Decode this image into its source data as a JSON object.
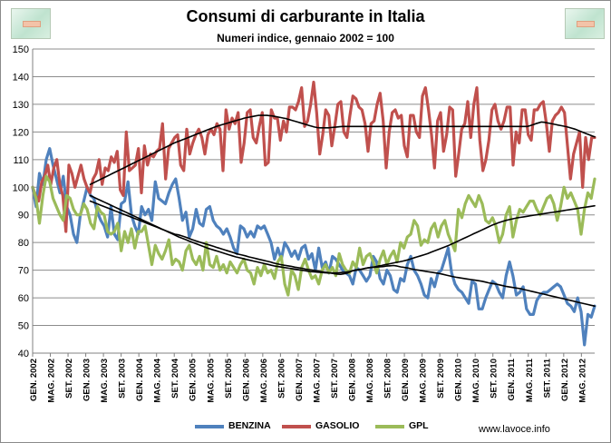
{
  "chart_data": {
    "type": "line",
    "title": "Consumi di carburante in Italia",
    "subtitle": "Numeri indice, gennaio 2002 = 100",
    "ylim": [
      40,
      150
    ],
    "y_ticks": [
      40,
      50,
      60,
      70,
      80,
      90,
      100,
      110,
      120,
      130,
      140,
      150
    ],
    "x_tick_labels": [
      "GEN. 2002",
      "MAG. 2002",
      "SET. 2002",
      "GEN. 2003",
      "MAG. 2003",
      "SET. 2003",
      "GEN. 2004",
      "MAG. 2004",
      "SET. 2004",
      "GEN. 2005",
      "MAG. 2005",
      "SET. 2005",
      "GEN. 2006",
      "MAG. 2006",
      "SET. 2006",
      "GEN. 2007",
      "MAG. 2007",
      "SET. 2007",
      "GEN. 2008",
      "MAG. 2008",
      "SET. 2008",
      "GEN. 2009",
      "MAG. 2009",
      "SET. 2009",
      "GEN. 2010",
      "MAG. 2010",
      "SET. 2010",
      "GEN. 2011",
      "MAG. 2011",
      "SET. 2011",
      "GEN. 2012",
      "MAG. 2012"
    ],
    "grid": true,
    "legend_position": "bottom",
    "series": [
      {
        "name": "BENZINA",
        "color": "#4f81bd",
        "values": [
          100,
          93,
          105,
          101,
          110,
          114,
          108,
          103,
          98,
          104,
          93,
          90,
          83,
          80,
          90,
          95,
          100,
          97,
          96,
          91,
          88,
          86,
          82,
          93,
          83,
          81,
          94,
          95,
          102,
          90,
          86,
          83,
          93,
          90,
          92,
          88,
          102,
          96,
          95,
          94,
          98,
          101,
          103,
          96,
          88,
          91,
          82,
          85,
          92,
          87,
          86,
          92,
          93,
          88,
          86,
          85,
          83,
          85,
          82,
          78,
          76,
          86,
          85,
          82,
          84,
          82,
          86,
          85,
          86,
          83,
          80,
          74,
          78,
          74,
          80,
          78,
          75,
          77,
          74,
          78,
          79,
          74,
          76,
          70,
          78,
          71,
          73,
          69,
          75,
          74,
          72,
          70,
          69,
          68,
          65,
          71,
          70,
          68,
          66,
          68,
          75,
          73,
          67,
          65,
          70,
          68,
          63,
          62,
          67,
          66,
          72,
          75,
          70,
          68,
          65,
          61,
          60,
          67,
          64,
          69,
          70,
          74,
          78,
          69,
          65,
          63,
          62,
          60,
          58,
          66,
          65,
          56,
          56,
          60,
          63,
          66,
          65,
          62,
          60,
          68,
          73,
          68,
          61,
          62,
          64,
          56,
          54,
          54,
          59,
          61,
          62,
          62,
          63,
          64,
          65,
          64,
          61,
          58,
          57,
          55,
          60,
          55,
          43,
          54,
          53,
          57
        ]
      },
      {
        "name": "GASOLIO",
        "color": "#c0504d",
        "values": [
          100,
          97,
          95,
          102,
          104,
          108,
          101,
          107,
          110,
          101,
          97,
          84,
          108,
          105,
          100,
          104,
          108,
          103,
          100,
          98,
          103,
          105,
          110,
          101,
          107,
          106,
          111,
          109,
          113,
          99,
          97,
          120,
          106,
          107,
          108,
          114,
          98,
          115,
          108,
          112,
          111,
          113,
          114,
          123,
          103,
          114,
          116,
          118,
          119,
          108,
          106,
          121,
          112,
          116,
          119,
          121,
          118,
          112,
          119,
          121,
          119,
          123,
          121,
          106,
          128,
          121,
          125,
          123,
          127,
          109,
          116,
          127,
          128,
          118,
          116,
          122,
          127,
          108,
          109,
          128,
          125,
          125,
          117,
          124,
          120,
          129,
          129,
          128,
          131,
          136,
          122,
          124,
          130,
          138,
          127,
          112,
          119,
          128,
          126,
          115,
          122,
          130,
          131,
          120,
          118,
          126,
          133,
          132,
          129,
          128,
          123,
          113,
          123,
          124,
          130,
          134,
          124,
          107,
          120,
          127,
          128,
          125,
          126,
          115,
          111,
          126,
          126,
          120,
          118,
          133,
          136,
          128,
          119,
          107,
          124,
          127,
          113,
          119,
          129,
          128,
          104,
          112,
          121,
          123,
          131,
          118,
          130,
          136,
          117,
          106,
          110,
          117,
          128,
          130,
          124,
          121,
          124,
          129,
          129,
          108,
          120,
          116,
          128,
          128,
          119,
          117,
          128,
          128,
          130,
          131,
          123,
          113,
          124,
          126,
          127,
          129,
          127,
          115,
          103,
          112,
          116,
          120,
          100,
          118,
          110,
          118,
          118
        ]
      },
      {
        "name": "GPL",
        "color": "#9bbb59",
        "values": [
          100,
          96,
          87,
          97,
          104,
          102,
          96,
          93,
          90,
          88,
          97,
          96,
          92,
          90,
          90,
          94,
          92,
          87,
          85,
          93,
          91,
          90,
          84,
          83,
          84,
          87,
          77,
          84,
          80,
          85,
          78,
          84,
          84,
          86,
          79,
          72,
          79,
          76,
          74,
          77,
          81,
          72,
          74,
          73,
          70,
          77,
          79,
          74,
          72,
          75,
          70,
          80,
          72,
          71,
          75,
          70,
          72,
          69,
          73,
          71,
          69,
          72,
          74,
          70,
          69,
          65,
          71,
          68,
          72,
          69,
          70,
          67,
          73,
          75,
          65,
          61,
          70,
          68,
          63,
          71,
          74,
          70,
          67,
          68,
          65,
          70,
          72,
          69,
          71,
          68,
          76,
          72,
          70,
          69,
          73,
          71,
          78,
          72,
          75,
          76,
          73,
          69,
          74,
          77,
          72,
          75,
          77,
          73,
          80,
          78,
          82,
          83,
          88,
          86,
          79,
          81,
          80,
          85,
          87,
          82,
          86,
          88,
          83,
          80,
          77,
          92,
          89,
          94,
          97,
          95,
          93,
          97,
          94,
          88,
          87,
          89,
          86,
          80,
          83,
          90,
          93,
          82,
          88,
          92,
          91,
          93,
          95,
          95,
          92,
          90,
          93,
          96,
          97,
          94,
          88,
          93,
          100,
          96,
          98,
          95,
          92,
          83,
          92,
          98,
          96,
          103
        ]
      },
      {
        "name": "trend BENZINA",
        "color": "#000000",
        "start_index": 13,
        "values": [
          95,
          94.5,
          94,
          93.5,
          93,
          92.5,
          92,
          91.5,
          91,
          90.5,
          90,
          89.5,
          89,
          88.5,
          88,
          87.5,
          87,
          86.5,
          86,
          85.5,
          85,
          84.5,
          84,
          83.5,
          83,
          82.8,
          82.4,
          82,
          81.5,
          81,
          80.6,
          80.2,
          79.8,
          79.4,
          79,
          78.6,
          78.2,
          77.8,
          77.4,
          77,
          76.6,
          76.2,
          75.8,
          75.5,
          75.2,
          74.8,
          74.5,
          74.2,
          73.9,
          73.6,
          73.3,
          73,
          72.6,
          72.3,
          72,
          71.8,
          71.6,
          71.4,
          71.1,
          70.9,
          70.7,
          70.4,
          70.2,
          70,
          69.8,
          69.6,
          69.4,
          69.2,
          69,
          68.8,
          68.6,
          68.5,
          68.7,
          69,
          69.6,
          70,
          70.2,
          70.4,
          70.7,
          70.9,
          71,
          71.1,
          71.2,
          71.3,
          71.5,
          71.6,
          71.7,
          71.5,
          71.2,
          71,
          70.8,
          70.5,
          70.2,
          70,
          69.8,
          69.6,
          69.4,
          69.2,
          69,
          68.8,
          68.5,
          68.2,
          67.9,
          67.6,
          67.4,
          67.2,
          67,
          66.8,
          66.6,
          66.4,
          66.2,
          66,
          65.7,
          65.4,
          65.2,
          65,
          64.7,
          64.4,
          64.1,
          63.9,
          63.7,
          63.5,
          63.3,
          63,
          62.7,
          62.4,
          62.1,
          61.8,
          61.5,
          61.2,
          60.9,
          60.6,
          60.3,
          60,
          59.7,
          59.4,
          59.1,
          58.8,
          58.5,
          58.2,
          57.9,
          57.6,
          57.3,
          57
        ]
      },
      {
        "name": "trend GASOLIO",
        "color": "#000000",
        "start_index": 13,
        "values": [
          101,
          101.5,
          102,
          102.5,
          103,
          103.5,
          104,
          104.5,
          105,
          105.5,
          106,
          106.5,
          107,
          107.5,
          108,
          108.5,
          109,
          109.5,
          110,
          110.5,
          111,
          111.5,
          112,
          112.5,
          113,
          113.5,
          114,
          114.5,
          115,
          115.5,
          116,
          116.4,
          116.8,
          117.2,
          117.6,
          118,
          118.4,
          118.8,
          119.2,
          119.6,
          120,
          120.4,
          120.8,
          121.2,
          121.6,
          122,
          122.3,
          122.6,
          122.9,
          123.2,
          123.5,
          123.8,
          124.1,
          124.4,
          124.7,
          125,
          125.2,
          125.4,
          125.6,
          125.8,
          126,
          126,
          126,
          126,
          125.9,
          125.8,
          125.6,
          125.4,
          125.2,
          125,
          124.8,
          124.5,
          124.2,
          123.9,
          123.6,
          123.3,
          123,
          122.7,
          122.4,
          122.1,
          121.8,
          121.6,
          121.5,
          121.5,
          121.5,
          121.5,
          121.6,
          121.7,
          121.8,
          121.9,
          122,
          122,
          122,
          122,
          122,
          122,
          122,
          122,
          122,
          122,
          122,
          122,
          122,
          122,
          122,
          122,
          122,
          122,
          122,
          122,
          122,
          122,
          122,
          122,
          122,
          122,
          122,
          122,
          122,
          122,
          122,
          122,
          122,
          122,
          122,
          122,
          122,
          122,
          122,
          122,
          122,
          122,
          122,
          122,
          122,
          122,
          122,
          122,
          122,
          122,
          122,
          122,
          122,
          122,
          122,
          122,
          122,
          122,
          122,
          122,
          122,
          122,
          122,
          122,
          122,
          122,
          122,
          122.3,
          122.6,
          123,
          123.3,
          123.6,
          123.5,
          123.3,
          123.1,
          122.9,
          122.7,
          122.5,
          122.3,
          122.1,
          121.9,
          121.6,
          121.3,
          121,
          120.6,
          120.2,
          119.8,
          119.4,
          119,
          118.6,
          118.2
        ]
      },
      {
        "name": "trend GPL",
        "color": "#000000",
        "start_index": 13,
        "values": [
          97,
          96.4,
          95.8,
          95.2,
          94.6,
          94,
          93.4,
          92.8,
          92.2,
          91.6,
          91,
          90.4,
          89.8,
          89.2,
          88.6,
          88,
          87.4,
          86.8,
          86.2,
          85.6,
          85,
          84.4,
          83.8,
          83.2,
          82.6,
          82,
          81.5,
          81,
          80.5,
          80,
          79.5,
          79,
          78.5,
          78,
          77.6,
          77.2,
          76.8,
          76.4,
          76,
          75.6,
          75.2,
          74.8,
          74.5,
          74.2,
          73.9,
          73.6,
          73.3,
          73,
          72.7,
          72.4,
          72.1,
          71.8,
          71.5,
          71.3,
          71.1,
          70.9,
          70.7,
          70.5,
          70.3,
          70.1,
          69.9,
          69.7,
          69.5,
          69.4,
          69.3,
          69.2,
          69.1,
          69,
          69,
          69,
          69.1,
          69.2,
          69.3,
          69.5,
          69.8,
          70,
          70.2,
          70.5,
          70.8,
          71,
          71.2,
          71.5,
          71.7,
          72,
          72.2,
          72.5,
          72.8,
          73,
          73.3,
          73.6,
          74,
          74.4,
          74.8,
          75.2,
          75.6,
          76,
          76.5,
          77,
          77.5,
          78,
          78.5,
          79,
          79.6,
          80.2,
          80.8,
          81.4,
          82,
          82.6,
          83.2,
          83.8,
          84.4,
          85,
          85.6,
          86.2,
          86.7,
          87.2,
          87.6,
          88,
          88.3,
          88.6,
          88.9,
          89.1,
          89.3,
          89.5,
          89.7,
          89.9,
          90.1,
          90.3,
          90.5,
          90.7,
          90.9,
          91.1,
          91.3,
          91.5,
          91.7,
          91.9,
          92.1,
          92.3,
          92.5,
          92.7,
          92.9,
          93.1,
          93.3
        ]
      }
    ]
  },
  "legend": [
    {
      "label": "BENZINA",
      "color": "#4f81bd"
    },
    {
      "label": "GASOLIO",
      "color": "#c0504d"
    },
    {
      "label": "GPL",
      "color": "#9bbb59"
    }
  ],
  "source": "www.lavoce.info"
}
